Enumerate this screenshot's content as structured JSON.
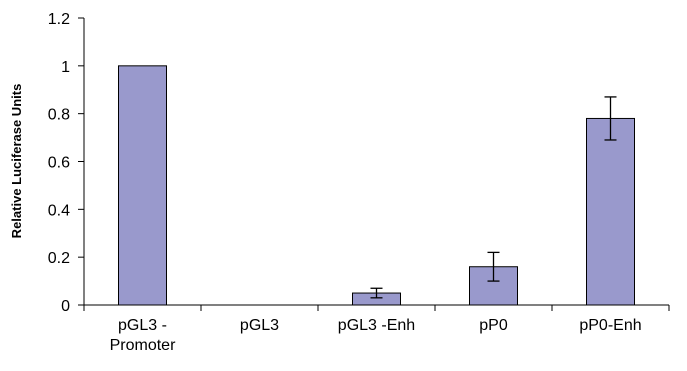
{
  "chart_data": {
    "type": "bar",
    "title": "",
    "xlabel": "",
    "ylabel": "Relative Luciferase Units",
    "ylim": [
      0,
      1.2
    ],
    "yticks": [
      0,
      0.2,
      0.4,
      0.6,
      0.8,
      1,
      1.2
    ],
    "ytick_labels": [
      "0",
      "0.2",
      "0.4",
      "0.6",
      "0.8",
      "1",
      "1.2"
    ],
    "grid": false,
    "legend": "none",
    "categories": [
      [
        "pGL3 -",
        "Promoter"
      ],
      [
        "pGL3"
      ],
      [
        "pGL3 -Enh"
      ],
      [
        "pP0"
      ],
      [
        "pP0-Enh"
      ]
    ],
    "values": [
      1.0,
      0.0,
      0.05,
      0.16,
      0.78
    ],
    "error": [
      0.0,
      0.0,
      0.02,
      0.06,
      0.09
    ],
    "bar_color": "#9999cc",
    "bar_edge": "#000000"
  }
}
